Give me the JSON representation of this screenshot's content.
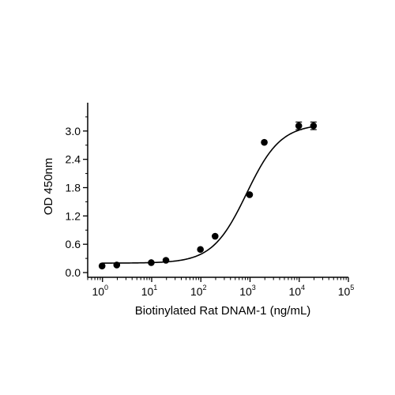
{
  "chart_data": {
    "type": "scatter",
    "title": "",
    "xlabel": "Biotinylated Rat DNAM-1 (ng/mL)",
    "ylabel": "OD 450nm",
    "x_scale": "log10",
    "xlim": [
      0.5,
      100000
    ],
    "ylim": [
      -0.1,
      3.6
    ],
    "x_ticks": [
      {
        "value": 1,
        "base": "10",
        "exp": "0"
      },
      {
        "value": 10,
        "base": "10",
        "exp": "1"
      },
      {
        "value": 100,
        "base": "10",
        "exp": "2"
      },
      {
        "value": 1000,
        "base": "10",
        "exp": "3"
      },
      {
        "value": 10000,
        "base": "10",
        "exp": "4"
      },
      {
        "value": 100000,
        "base": "10",
        "exp": "5"
      }
    ],
    "y_ticks": [
      {
        "value": 0.0,
        "label": "0.0"
      },
      {
        "value": 0.6,
        "label": "0.6"
      },
      {
        "value": 1.2,
        "label": "1.2"
      },
      {
        "value": 1.8,
        "label": "1.8"
      },
      {
        "value": 2.4,
        "label": "2.4"
      },
      {
        "value": 3.0,
        "label": "3.0"
      }
    ],
    "points": [
      {
        "x": 0.98,
        "y": 0.14
      },
      {
        "x": 1.95,
        "y": 0.16
      },
      {
        "x": 9.8,
        "y": 0.21
      },
      {
        "x": 19.5,
        "y": 0.26
      },
      {
        "x": 98,
        "y": 0.49
      },
      {
        "x": 195,
        "y": 0.77
      },
      {
        "x": 980,
        "y": 1.65
      },
      {
        "x": 1950,
        "y": 2.76
      },
      {
        "x": 9800,
        "y": 3.11,
        "err": 0.08
      },
      {
        "x": 19500,
        "y": 3.11,
        "err": 0.08
      }
    ],
    "fit": {
      "model": "4PL",
      "bottom": 0.2,
      "top": 3.15,
      "ec50": 850,
      "hill": 1.25
    },
    "grid": false,
    "legend": "none"
  }
}
